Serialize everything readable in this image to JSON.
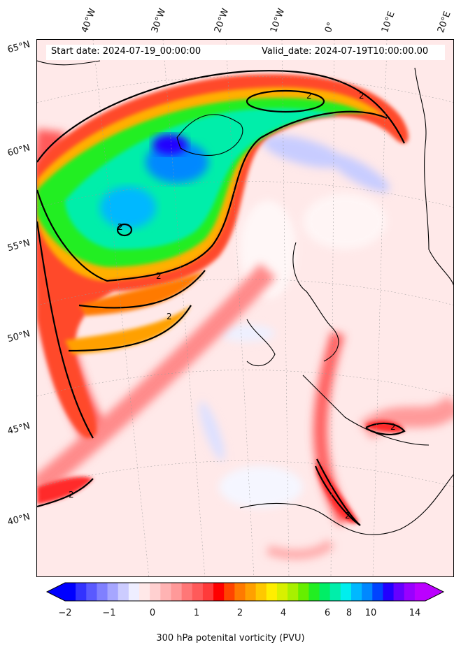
{
  "header": {
    "start": "Start date: 2024-07-19_00:00:00",
    "valid": "Valid_date: 2024-07-19T10:00:00.00"
  },
  "longitudes": [
    "40°W",
    "30°W",
    "20°W",
    "10°W",
    "0°",
    "10°E",
    "20°E"
  ],
  "latitudes": [
    "65°N",
    "60°N",
    "55°N",
    "50°N",
    "45°N",
    "40°N"
  ],
  "contour_label": "2",
  "colorbar": {
    "label": "300 hPa potenital vorticity (PVU)",
    "ticks": [
      "−2",
      "−1",
      "0",
      "1",
      "2",
      "4",
      "6",
      "8",
      "10",
      "14"
    ],
    "colors": [
      "#0000ff",
      "#3333ff",
      "#5a5aff",
      "#8080ff",
      "#a6a6ff",
      "#ccccff",
      "#eeeeff",
      "#ffe8e8",
      "#ffd0d0",
      "#ffb3b3",
      "#ff9999",
      "#ff7777",
      "#ff5a5a",
      "#ff3a3a",
      "#ff0000",
      "#ff4400",
      "#ff7a00",
      "#ffa000",
      "#ffc800",
      "#ffee00",
      "#d8f000",
      "#a8f000",
      "#66ee00",
      "#22ee22",
      "#00ee66",
      "#00eeaa",
      "#00eeee",
      "#00b8ff",
      "#0088ff",
      "#0044ff",
      "#2200ff",
      "#6600ff",
      "#9900ff",
      "#bb00ff"
    ]
  }
}
